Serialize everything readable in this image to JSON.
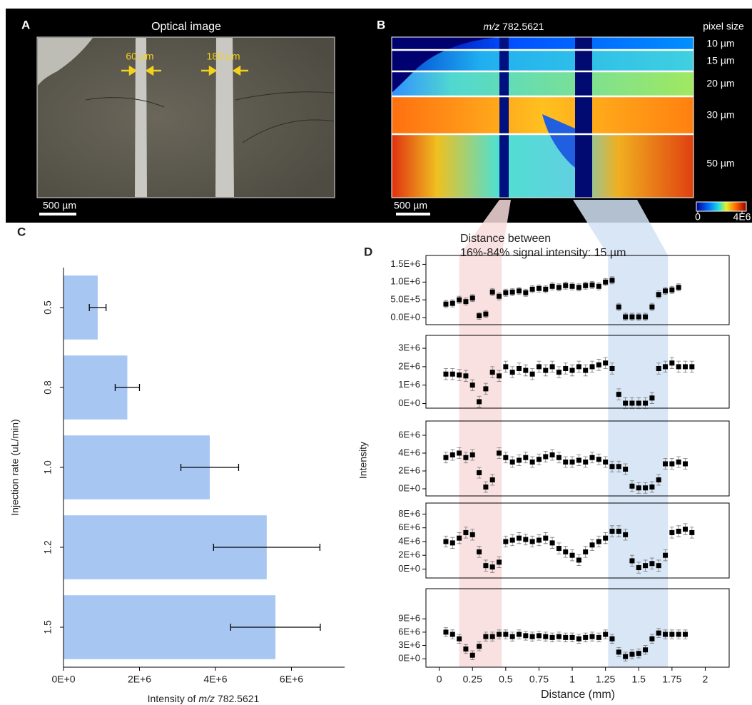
{
  "panel_a": {
    "label": "A",
    "title": "Optical image",
    "gap_labels": [
      "60 µm",
      "180 µm"
    ],
    "scale_bar": "500 µm"
  },
  "panel_b": {
    "label": "B",
    "title_italic": "m/z",
    "title": "782.5621",
    "pixel_size_title": "pixel size",
    "pixel_sizes": [
      "10 µm",
      "15 µm",
      "20 µm",
      "30 µm",
      "50 µm"
    ],
    "scale_bar": "500 µm",
    "colorbar_ticks": [
      0,
      {
        "value": 4000000,
        "label": "4E6"
      }
    ]
  },
  "chart_data": [
    {
      "type": "bar",
      "orientation": "horizontal",
      "label": "C",
      "categories": [
        "0.5",
        "0.8",
        "1.0",
        "1.2",
        "1.5"
      ],
      "values": [
        900000,
        1680000,
        3850000,
        5350000,
        5580000
      ],
      "errors": [
        220000,
        320000,
        760000,
        1400000,
        1180000
      ],
      "color": "#a7c7f2",
      "xlim": [
        0,
        7400000
      ],
      "xticks": [
        {
          "value": 0,
          "label": "0E+0"
        },
        {
          "value": 2000000,
          "label": "2E+6"
        },
        {
          "value": 4000000,
          "label": "4E+6"
        },
        {
          "value": 6000000,
          "label": "6E+6"
        }
      ],
      "ylabel": "Injection rate (uL/min)",
      "xlabel_prefix": "Intensity of",
      "xlabel_italic": "m/z",
      "xlabel_suffix": "782.5621"
    },
    {
      "type": "scatter",
      "label": "D",
      "annotation": [
        "Distance between",
        "16%-84% signal intensity: 15 µm"
      ],
      "xlabel": "Distance (mm)",
      "ylabel": "Intensity",
      "xlim": [
        -0.1,
        2.18
      ],
      "xticks": [
        0,
        0.25,
        0.5,
        0.75,
        1,
        1.25,
        1.5,
        1.75,
        2
      ],
      "color": "#000000",
      "highlight_spans": [
        {
          "start": 0.15,
          "end": 0.47,
          "color": "#f9dcdc"
        },
        {
          "start": 1.27,
          "end": 1.72,
          "color": "#d2e2f4"
        }
      ],
      "panels": [
        {
          "x": [
            0.05,
            0.1,
            0.15,
            0.2,
            0.25,
            0.3,
            0.35,
            0.4,
            0.45,
            0.5,
            0.55,
            0.6,
            0.65,
            0.7,
            0.75,
            0.8,
            0.85,
            0.9,
            0.95,
            1,
            1.05,
            1.1,
            1.15,
            1.2,
            1.25,
            1.3,
            1.35,
            1.4,
            1.45,
            1.5,
            1.55,
            1.6,
            1.65,
            1.7,
            1.75,
            1.8
          ],
          "values": [
            380000,
            400000,
            500000,
            450000,
            550000,
            50000,
            100000,
            720000,
            600000,
            700000,
            720000,
            750000,
            700000,
            800000,
            820000,
            800000,
            880000,
            850000,
            900000,
            880000,
            850000,
            900000,
            920000,
            880000,
            1000000,
            1050000,
            300000,
            20000,
            20000,
            20000,
            20000,
            300000,
            650000,
            750000,
            780000,
            850000
          ],
          "error": 100000,
          "ylim": [
            -200000,
            1750000
          ],
          "yticks": [
            {
              "value": 0,
              "label": "0.0E+0"
            },
            {
              "value": 500000,
              "label": "5.0E+5"
            },
            {
              "value": 1000000,
              "label": "1.0E+6"
            },
            {
              "value": 1500000,
              "label": "1.5E+6"
            }
          ]
        },
        {
          "x": [
            0.05,
            0.1,
            0.15,
            0.2,
            0.25,
            0.3,
            0.35,
            0.4,
            0.45,
            0.5,
            0.55,
            0.6,
            0.65,
            0.7,
            0.75,
            0.8,
            0.85,
            0.9,
            0.95,
            1,
            1.05,
            1.1,
            1.15,
            1.2,
            1.25,
            1.3,
            1.35,
            1.4,
            1.45,
            1.5,
            1.55,
            1.6,
            1.65,
            1.7,
            1.75,
            1.8,
            1.85,
            1.9
          ],
          "values": [
            1600000,
            1600000,
            1550000,
            1500000,
            1000000,
            100000,
            800000,
            1700000,
            1500000,
            2000000,
            1700000,
            1900000,
            1800000,
            1600000,
            2000000,
            1800000,
            2000000,
            1700000,
            1900000,
            1800000,
            2000000,
            1800000,
            2000000,
            2100000,
            2200000,
            1900000,
            500000,
            20000,
            20000,
            20000,
            20000,
            300000,
            1900000,
            2000000,
            2200000,
            2000000,
            2000000,
            2000000
          ],
          "error": 300000,
          "ylim": [
            -250000,
            3700000
          ],
          "yticks": [
            {
              "value": 0,
              "label": "0E+0"
            },
            {
              "value": 1000000,
              "label": "1E+6"
            },
            {
              "value": 2000000,
              "label": "2E+6"
            },
            {
              "value": 3000000,
              "label": "3E+6"
            }
          ]
        },
        {
          "x": [
            0.05,
            0.1,
            0.15,
            0.2,
            0.25,
            0.3,
            0.35,
            0.4,
            0.45,
            0.5,
            0.55,
            0.6,
            0.65,
            0.7,
            0.75,
            0.8,
            0.85,
            0.9,
            0.95,
            1,
            1.05,
            1.1,
            1.15,
            1.2,
            1.25,
            1.3,
            1.35,
            1.4,
            1.45,
            1.5,
            1.55,
            1.6,
            1.65,
            1.7,
            1.75,
            1.8,
            1.85
          ],
          "values": [
            3500000,
            3800000,
            4000000,
            3500000,
            3800000,
            1800000,
            200000,
            1000000,
            4000000,
            3500000,
            3000000,
            3200000,
            3500000,
            3000000,
            3300000,
            3600000,
            3800000,
            3500000,
            3000000,
            3000000,
            3200000,
            3000000,
            3500000,
            3300000,
            3000000,
            2500000,
            2500000,
            2200000,
            300000,
            100000,
            100000,
            200000,
            1000000,
            2800000,
            2800000,
            3000000,
            2800000
          ],
          "error": 600000,
          "ylim": [
            -800000,
            7600000
          ],
          "yticks": [
            {
              "value": 0,
              "label": "0E+0"
            },
            {
              "value": 2000000,
              "label": "2E+6"
            },
            {
              "value": 4000000,
              "label": "4E+6"
            },
            {
              "value": 6000000,
              "label": "6E+6"
            }
          ]
        },
        {
          "x": [
            0.05,
            0.1,
            0.15,
            0.2,
            0.25,
            0.3,
            0.35,
            0.4,
            0.45,
            0.5,
            0.55,
            0.6,
            0.65,
            0.7,
            0.75,
            0.8,
            0.85,
            0.9,
            0.95,
            1,
            1.05,
            1.1,
            1.15,
            1.2,
            1.25,
            1.3,
            1.35,
            1.4,
            1.45,
            1.5,
            1.55,
            1.6,
            1.65,
            1.7,
            1.75,
            1.8,
            1.85,
            1.9
          ],
          "values": [
            4000000,
            3800000,
            4500000,
            5300000,
            5000000,
            2500000,
            500000,
            300000,
            1000000,
            4000000,
            4200000,
            4500000,
            4300000,
            4000000,
            4200000,
            4500000,
            3800000,
            3000000,
            2500000,
            2000000,
            1300000,
            2500000,
            3500000,
            4000000,
            4500000,
            5500000,
            5500000,
            5000000,
            1200000,
            200000,
            500000,
            800000,
            500000,
            2000000,
            5300000,
            5500000,
            5800000,
            5300000
          ],
          "error": 800000,
          "ylim": [
            -1300000,
            9600000
          ],
          "yticks": [
            {
              "value": 0,
              "label": "0E+0"
            },
            {
              "value": 2000000,
              "label": "2E+6"
            },
            {
              "value": 4000000,
              "label": "4E+6"
            },
            {
              "value": 6000000,
              "label": "6E+6"
            },
            {
              "value": 8000000,
              "label": "8E+6"
            }
          ]
        },
        {
          "x": [
            0.05,
            0.1,
            0.15,
            0.2,
            0.25,
            0.3,
            0.35,
            0.4,
            0.45,
            0.5,
            0.55,
            0.6,
            0.65,
            0.7,
            0.75,
            0.8,
            0.85,
            0.9,
            0.95,
            1,
            1.05,
            1.1,
            1.15,
            1.2,
            1.25,
            1.3,
            1.35,
            1.4,
            1.45,
            1.5,
            1.55,
            1.6,
            1.65,
            1.7,
            1.75,
            1.8,
            1.85
          ],
          "values": [
            6000000,
            5500000,
            4500000,
            2200000,
            800000,
            2800000,
            5000000,
            5000000,
            5500000,
            5500000,
            5000000,
            5500000,
            5200000,
            5000000,
            5200000,
            5000000,
            4800000,
            5000000,
            4800000,
            4800000,
            4500000,
            4800000,
            5000000,
            4800000,
            5500000,
            4500000,
            1500000,
            500000,
            1000000,
            1200000,
            2000000,
            4500000,
            5800000,
            5500000,
            5500000,
            5500000,
            5500000
          ],
          "error": 1000000,
          "ylim": [
            -1900000,
            15800000
          ],
          "yticks": [
            {
              "value": 0,
              "label": "0E+0"
            },
            {
              "value": 3000000,
              "label": "3E+6"
            },
            {
              "value": 6000000,
              "label": "6E+6"
            },
            {
              "value": 9000000,
              "label": "9E+6"
            }
          ]
        }
      ]
    }
  ]
}
